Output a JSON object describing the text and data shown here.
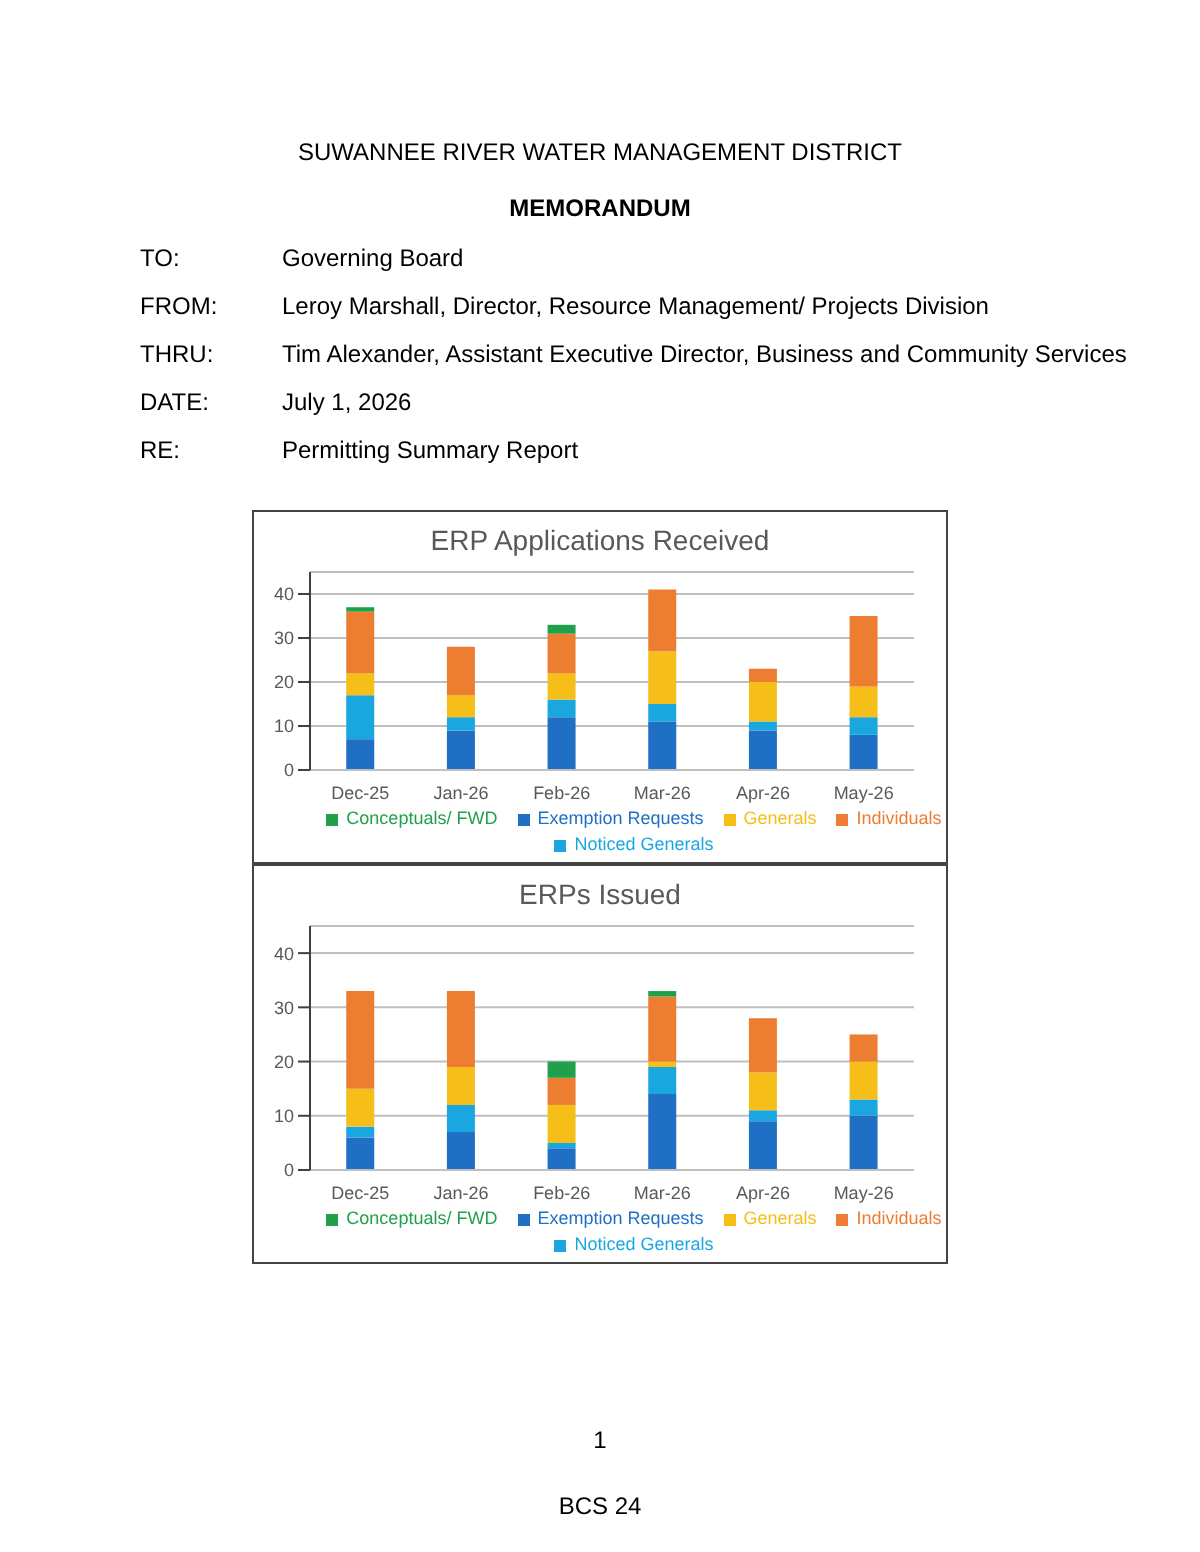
{
  "chart_data": [
    {
      "type": "bar",
      "title": "ERP Applications Received",
      "stacked": true,
      "categories": [
        "Dec-25",
        "Jan-26",
        "Feb-26",
        "Mar-26",
        "Apr-26",
        "May-26"
      ],
      "series": [
        {
          "name": "Exemption Requests",
          "color": "#1f6fc5",
          "values": [
            7,
            9,
            12,
            11,
            9,
            8
          ]
        },
        {
          "name": "Noticed Generals",
          "color": "#1aa7e0",
          "values": [
            10,
            3,
            4,
            4,
            2,
            4
          ]
        },
        {
          "name": "Generals",
          "color": "#f5be19",
          "values": [
            5,
            5,
            6,
            12,
            9,
            7
          ]
        },
        {
          "name": "Individuals",
          "color": "#ec7d31",
          "values": [
            14,
            11,
            9,
            14,
            3,
            16
          ]
        },
        {
          "name": "Conceptuals/ FWD",
          "color": "#21a04b",
          "values": [
            1,
            0,
            2,
            0,
            0,
            0
          ]
        }
      ],
      "ylim": [
        0,
        45
      ],
      "yticks": [
        0,
        10,
        20,
        30,
        40
      ],
      "grid": "y",
      "legend": "bottom",
      "annotations": [
        "SUWANNEE RIVER WATER MANAGEMENT DISTRICT",
        "MEMORANDUM",
        "TO:",
        "Governing Board",
        "FROM:",
        "Leroy Marshall, Director, Resource Management/ Projects Division",
        "THRU:",
        "Tim Alexander, Assistant Executive Director, Business and Community Services",
        "DATE:",
        "July 1, 2026",
        "RE:",
        "Permitting Summary Report"
      ]
    },
    {
      "type": "bar",
      "title": "ERPs Issued",
      "stacked": true,
      "categories": [
        "Dec-25",
        "Jan-26",
        "Feb-26",
        "Mar-26",
        "Apr-26",
        "May-26"
      ],
      "series": [
        {
          "name": "Exemption Requests",
          "color": "#1f6fc5",
          "values": [
            6,
            7,
            4,
            14,
            9,
            10
          ]
        },
        {
          "name": "Noticed Generals",
          "color": "#1aa7e0",
          "values": [
            2,
            5,
            1,
            5,
            2,
            3
          ]
        },
        {
          "name": "Generals",
          "color": "#f5be19",
          "values": [
            7,
            7,
            7,
            1,
            7,
            7
          ]
        },
        {
          "name": "Individuals",
          "color": "#ec7d31",
          "values": [
            18,
            14,
            5,
            12,
            10,
            5
          ]
        },
        {
          "name": "Conceptuals/ FWD",
          "color": "#21a04b",
          "values": [
            0,
            0,
            3,
            1,
            0,
            0
          ]
        }
      ],
      "ylim": [
        0,
        45
      ],
      "yticks": [
        0,
        10,
        20,
        30,
        40
      ],
      "grid": "y",
      "legend": "bottom",
      "annotations": [
        "1",
        "BCS 24"
      ]
    }
  ]
}
